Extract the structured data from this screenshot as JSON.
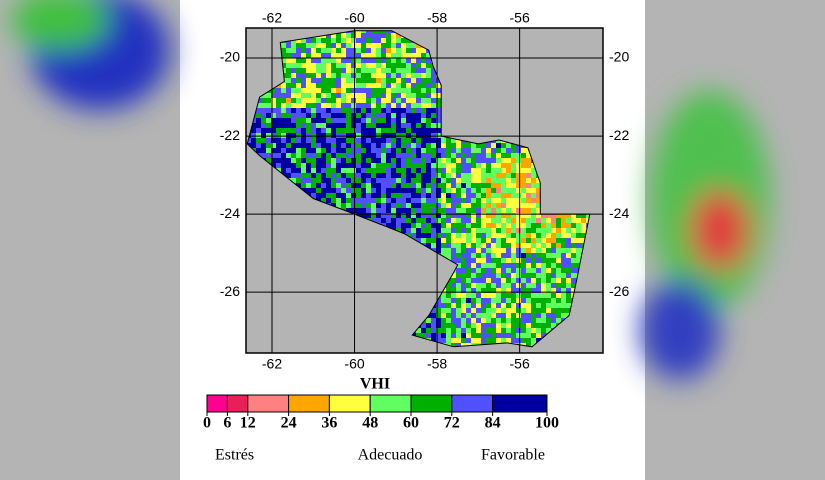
{
  "map": {
    "xlim": [
      -62.63,
      -53.98
    ],
    "ylim": [
      -27.56,
      -19.23
    ],
    "xticks": [
      -62,
      -60,
      -58,
      -56
    ],
    "yticks": [
      -20,
      -22,
      -24,
      -26
    ],
    "grid": true
  },
  "legend": {
    "title": "VHI",
    "ticks": [
      0,
      6,
      12,
      24,
      36,
      48,
      60,
      72,
      84,
      100
    ],
    "colors": [
      "#ff0090",
      "#e8205a",
      "#ff8080",
      "#ffa500",
      "#ffff40",
      "#60ff60",
      "#00b000",
      "#5050ff",
      "#0000a0"
    ],
    "labels": [
      "Estrés",
      "Adecuado",
      "Favorable"
    ]
  }
}
